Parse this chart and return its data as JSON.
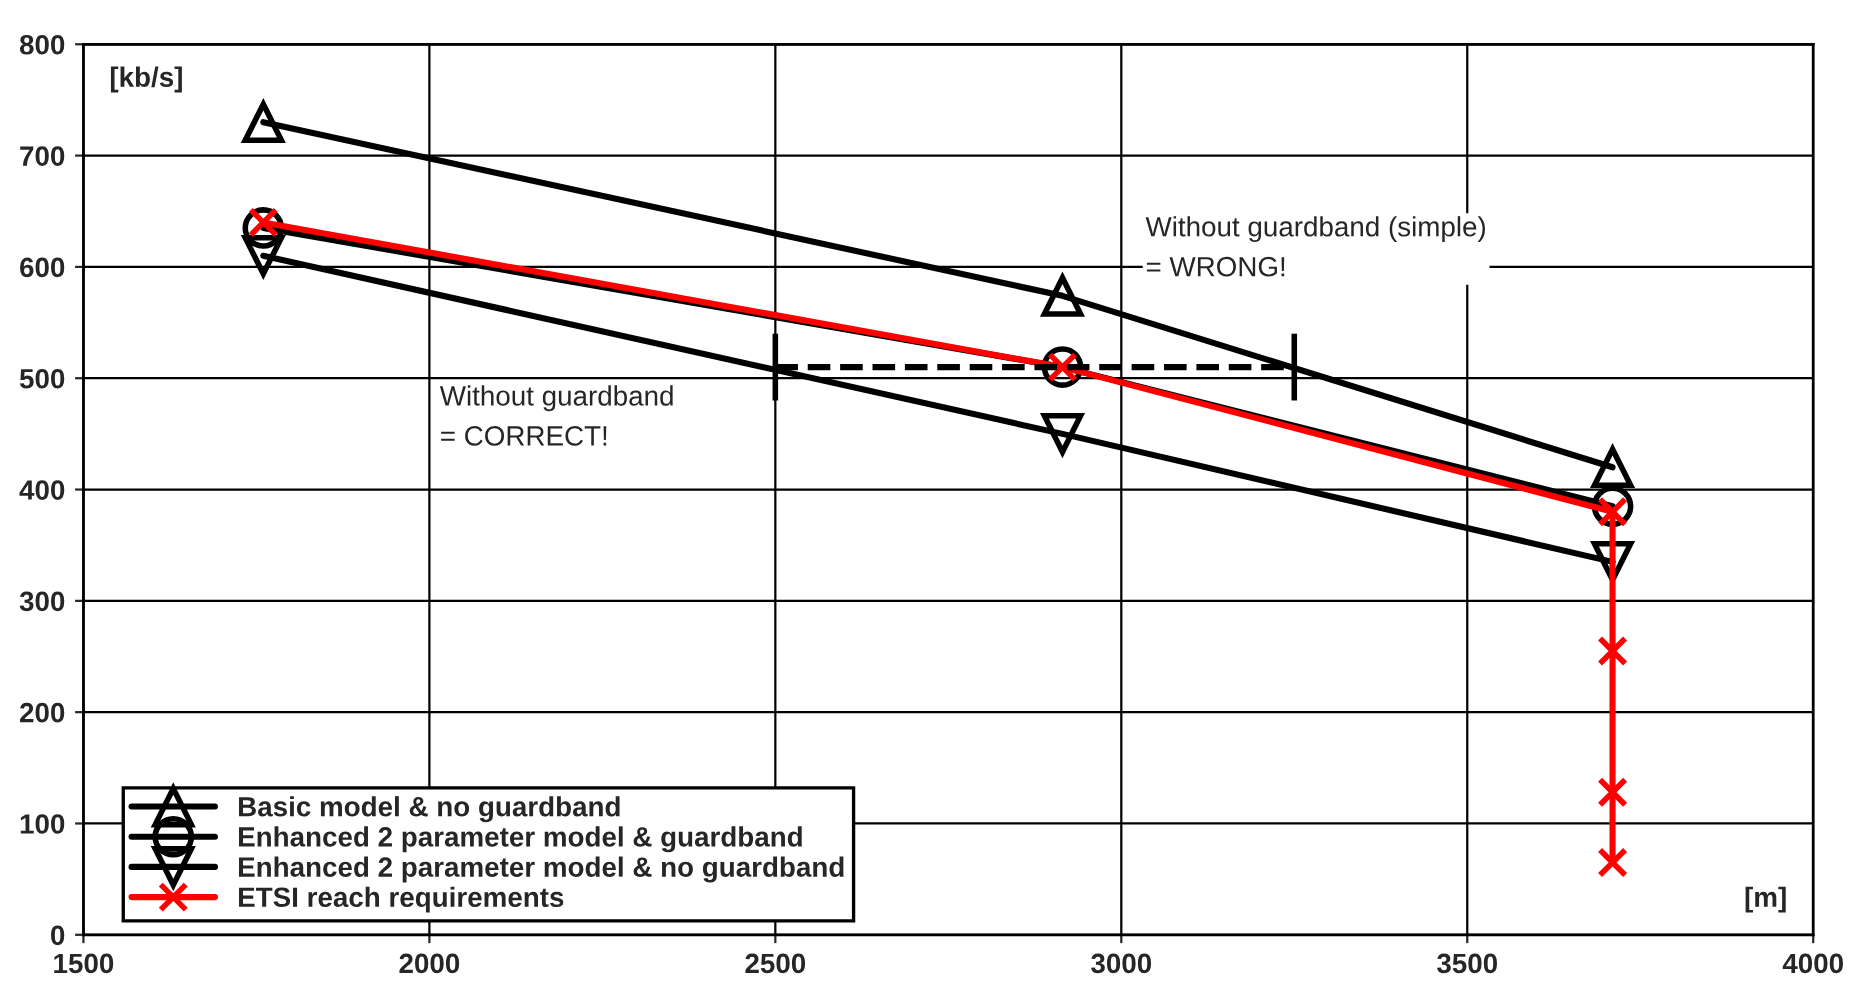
{
  "chart_data": {
    "type": "line",
    "xlabel": "[m]",
    "ylabel": "[kb/s]",
    "xlim": [
      1500,
      4000
    ],
    "xticks": [
      1500,
      2000,
      2500,
      3000,
      3500,
      4000
    ],
    "ylim": [
      0,
      800
    ],
    "yticks": [
      0,
      100,
      200,
      300,
      400,
      500,
      600,
      700,
      800
    ],
    "grid": true,
    "legend": "bottom left",
    "line_style": "solid",
    "series": [
      {
        "name": "Basic model & no guardband",
        "color": "#000000",
        "marker": "triangle",
        "x": [
          1760,
          2915,
          3710
        ],
        "values": [
          730,
          574,
          420
        ]
      },
      {
        "name": "Enhanced 2 parameter model & guardband",
        "color": "#000000",
        "marker": "circle",
        "x": [
          1760,
          2915,
          3710
        ],
        "values": [
          635,
          510,
          385
        ]
      },
      {
        "name": "Enhanced 2 parameter model & no guardband",
        "color": "#000000",
        "marker": "triangle_down",
        "x": [
          1760,
          2915,
          3710
        ],
        "values": [
          610,
          450,
          335
        ]
      },
      {
        "name": "ETSI reach requirements",
        "color": "#ff0000",
        "marker": "cross",
        "x": [
          1760,
          2915,
          3710,
          3710,
          3710,
          3710
        ],
        "values": [
          640,
          510,
          380,
          255,
          128,
          65
        ]
      },
      {
        "color": "#000000",
        "marker": "none",
        "line_style": "dashed",
        "x": [
          2500,
          3250
        ],
        "values": [
          510,
          510
        ],
        "errors": [
          30,
          30
        ]
      }
    ],
    "annotations": [
      "Without guardband (simple)\n= WRONG!",
      "Without guardband\n= CORRECT!"
    ]
  }
}
